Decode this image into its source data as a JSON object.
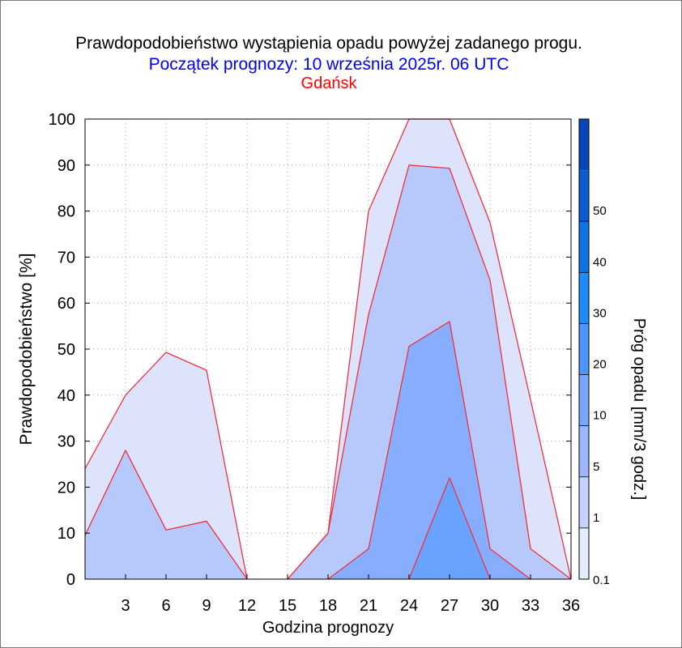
{
  "chart_data": {
    "type": "area",
    "title": "Prawdopodobieństwo wystąpienia opadu powyżej zadanego progu.",
    "subtitle": "Początek prognozy: 10 września 2025r. 06 UTC",
    "location": "Gdańsk",
    "xlabel": "Godzina prognozy",
    "ylabel": "Prawdopodobieństwo [%]",
    "colorbar_label": "Próg opadu [mm/3 godz.]",
    "x": [
      0,
      3,
      6,
      9,
      12,
      15,
      18,
      21,
      24,
      27,
      30,
      33,
      36
    ],
    "x_ticks": [
      3,
      6,
      9,
      12,
      15,
      18,
      21,
      24,
      27,
      30,
      33,
      36
    ],
    "xlim": [
      0,
      36
    ],
    "y_ticks": [
      0,
      10,
      20,
      30,
      40,
      50,
      60,
      70,
      80,
      90,
      100
    ],
    "ylim": [
      0,
      100
    ],
    "grid": true,
    "series": [
      {
        "threshold": 0.1,
        "color": "#dce3fb",
        "values": [
          24,
          40,
          49.3,
          45.4,
          0,
          0,
          10,
          80,
          100,
          100,
          77.5,
          39,
          0
        ]
      },
      {
        "threshold": 1,
        "color": "#b7c9fb",
        "values": [
          9.5,
          28,
          10.7,
          12.6,
          0,
          0,
          10,
          57.5,
          90,
          89.3,
          65,
          6.6,
          0
        ]
      },
      {
        "threshold": 5,
        "color": "#87aefc",
        "values": [
          0,
          0,
          0,
          0,
          0,
          0,
          0,
          6.6,
          50.6,
          56,
          6.6,
          0,
          0
        ]
      },
      {
        "threshold": 10,
        "color": "#6aa3ff",
        "values": [
          0,
          0,
          0,
          0,
          0,
          0,
          0,
          0,
          0,
          22,
          0,
          0,
          0
        ]
      }
    ],
    "colorbar": {
      "ticks": [
        "0.1",
        "1",
        "5",
        "10",
        "20",
        "30",
        "40",
        "50"
      ],
      "colors": [
        "#e4ecff",
        "#c3d3fb",
        "#9cb8fb",
        "#77a7fc",
        "#4c95fb",
        "#1e8cf8",
        "#0d74e6",
        "#0a5ad0",
        "#0847ba"
      ]
    }
  }
}
